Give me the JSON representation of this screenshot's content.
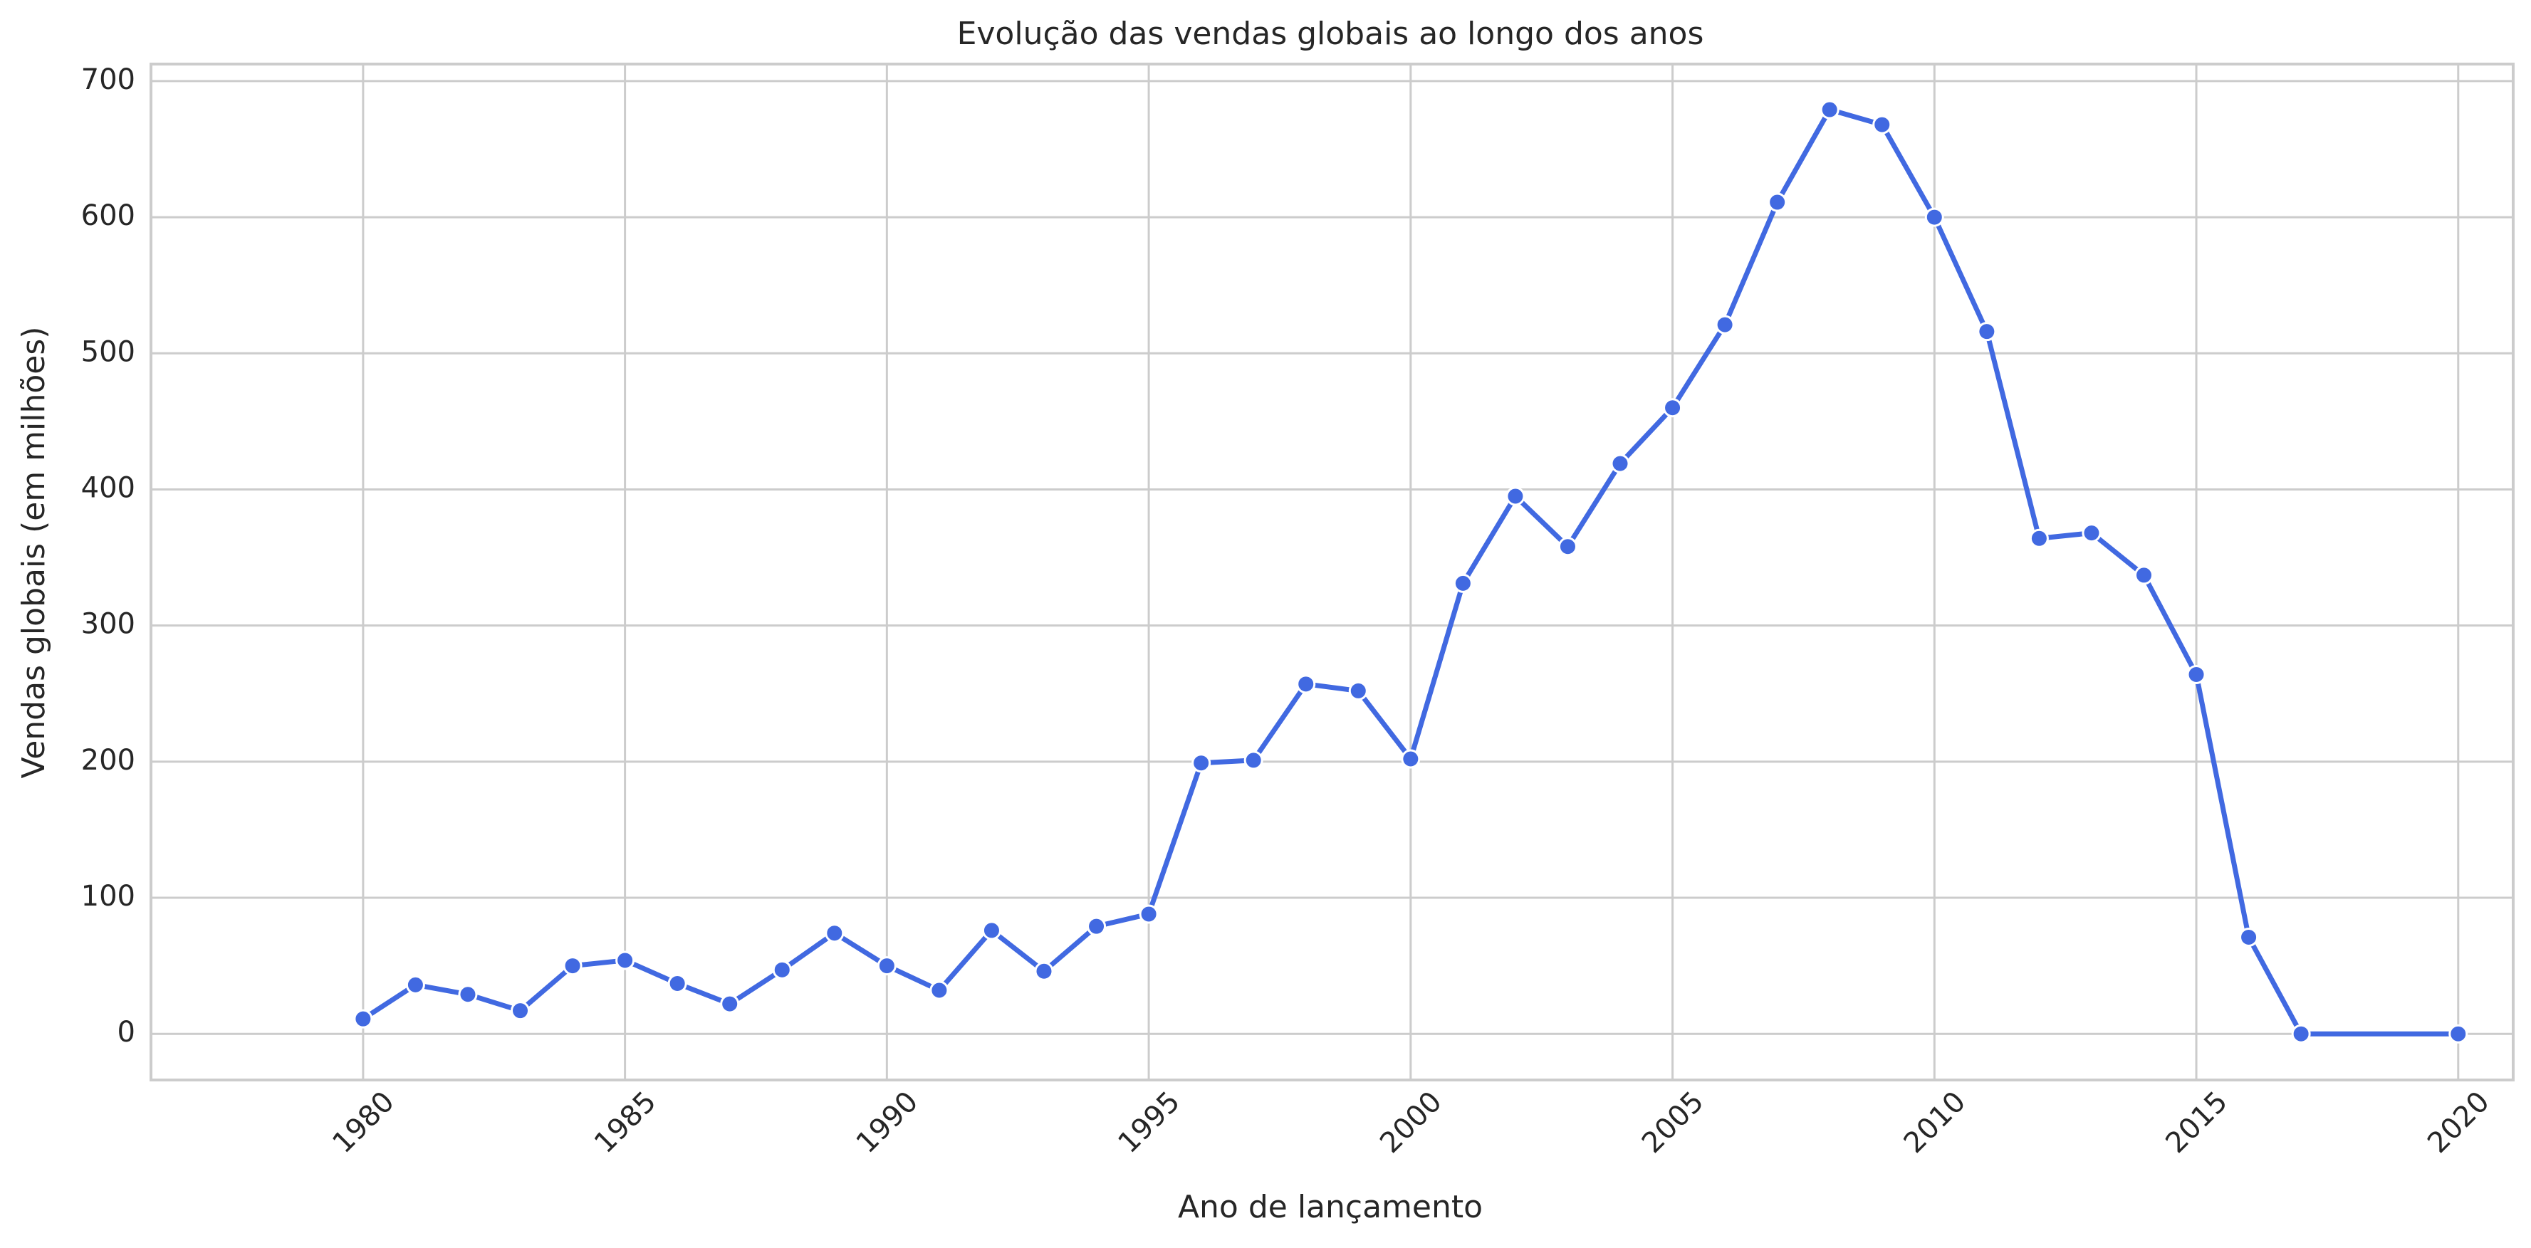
{
  "chart_data": {
    "type": "line",
    "title": "Evolução das vendas globais ao longo dos anos",
    "xlabel": "Ano de lançamento",
    "ylabel": "Vendas globais (em milhões)",
    "xlim": [
      1975.95,
      2021.05
    ],
    "ylim": [
      -33.9,
      712.5
    ],
    "x_ticks": [
      1980,
      1985,
      1990,
      1995,
      2000,
      2005,
      2010,
      2015,
      2020
    ],
    "y_ticks": [
      0,
      100,
      200,
      300,
      400,
      500,
      600,
      700
    ],
    "grid": true,
    "series": [
      {
        "color": "#4169E1",
        "marker": "circle",
        "x": [
          1980,
          1981,
          1982,
          1983,
          1984,
          1985,
          1986,
          1987,
          1988,
          1989,
          1990,
          1991,
          1992,
          1993,
          1994,
          1995,
          1996,
          1997,
          1998,
          1999,
          2000,
          2001,
          2002,
          2003,
          2004,
          2005,
          2006,
          2007,
          2008,
          2009,
          2010,
          2011,
          2012,
          2013,
          2014,
          2015,
          2016,
          2017,
          2020
        ],
        "values": [
          11,
          36,
          29,
          17,
          50,
          54,
          37,
          22,
          47,
          74,
          50,
          32,
          76,
          46,
          79,
          88,
          199,
          201,
          257,
          252,
          202,
          331,
          395,
          358,
          419,
          460,
          521,
          611,
          679,
          668,
          600,
          516,
          364,
          368,
          337,
          264,
          71,
          0,
          0
        ]
      }
    ]
  }
}
